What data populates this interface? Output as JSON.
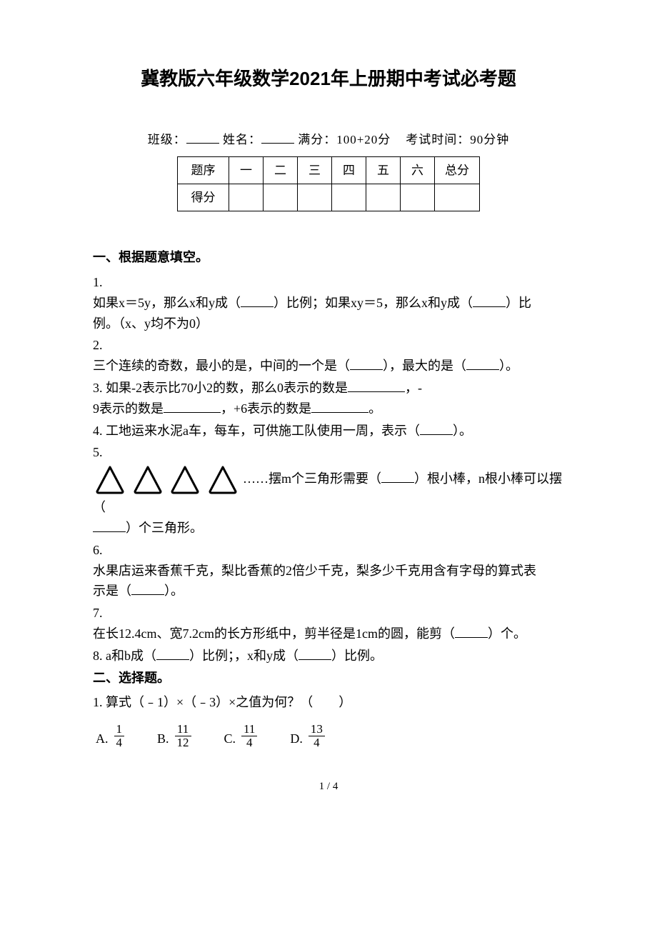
{
  "title": "冀教版六年级数学2021年上册期中考试必考题",
  "meta": {
    "class_label": "班级：",
    "name_label": "姓名：",
    "full_marks": "满分：100+20分",
    "exam_time": "考试时间：90分钟"
  },
  "score_table": {
    "row1": [
      "题序",
      "一",
      "二",
      "三",
      "四",
      "五",
      "六",
      "总分"
    ],
    "row2_label": "得分"
  },
  "sec1": {
    "heading": "一、根据题意填空。",
    "q1_num": "1.",
    "q1_text_a": "如果x＝5y，那么x和y成（",
    "q1_text_b": "）比例；如果xy＝5，那么x和y成（",
    "q1_text_c": "）比",
    "q1_text_d": "例。（x、y均不为0）",
    "q2_num": "2.",
    "q2_text_a": "三个连续的奇数，最小的是，中间的一个是（",
    "q2_text_b": "），最大的是（",
    "q2_text_c": "）。",
    "q3_text_a": "3. 如果-2表示比70小2的数，那么0表示的数是",
    "q3_text_b": "，-",
    "q3_text_c": "9表示的数是",
    "q3_text_d": "，+6表示的数是",
    "q3_text_e": "。",
    "q4_text_a": "4. 工地运来水泥a车，每车，可供施工队使用一周，表示（",
    "q4_text_b": "）。",
    "q5_num": "5.",
    "q5_text_a": "……摆m个三角形需要（",
    "q5_text_b": "）根小棒，n根小棒可以摆（",
    "q5_text_c": "）个三角形。",
    "q6_num": "6.",
    "q6_text_a": "水果店运来香蕉千克，梨比香蕉的2倍少千克，梨多少千克用含有字母的算式表",
    "q6_text_b": "示是（",
    "q6_text_c": "）。",
    "q7_num": "7.",
    "q7_text_a": "在长12.4cm、宽7.2cm的长方形纸中，剪半径是1cm的圆，能剪（",
    "q7_text_b": "）个。",
    "q8_text_a": "8. a和b成（",
    "q8_text_b": "）比例；，x和y成（",
    "q8_text_c": "）比例。"
  },
  "sec2": {
    "heading": "二、选择题。",
    "q1_text": "1. 算式（﹣1）×（﹣3）×之值为何？（　　）",
    "options": [
      {
        "label": "A.",
        "num": "1",
        "den": "4"
      },
      {
        "label": "B.",
        "num": "11",
        "den": "12"
      },
      {
        "label": "C.",
        "num": "11",
        "den": "4"
      },
      {
        "label": "D.",
        "num": "13",
        "den": "4"
      }
    ]
  },
  "page_num": "1 / 4",
  "triangles": {
    "count": 4,
    "stroke": "#000000",
    "stroke_width": 3,
    "size": 48
  }
}
